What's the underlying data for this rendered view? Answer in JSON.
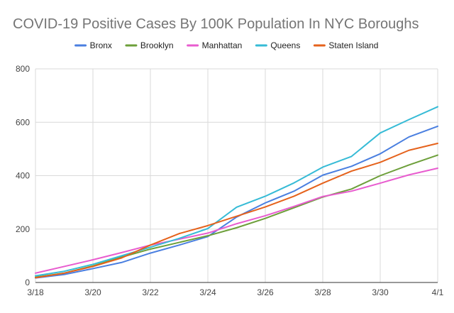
{
  "chart_data": {
    "type": "line",
    "title": "COVID-19 Positive Cases By 100K Population In NYC Boroughs",
    "xlabel": "",
    "ylabel": "",
    "x": [
      "3/18",
      "3/19",
      "3/20",
      "3/21",
      "3/22",
      "3/23",
      "3/24",
      "3/25",
      "3/26",
      "3/27",
      "3/28",
      "3/29",
      "3/30",
      "3/31",
      "4/1"
    ],
    "x_tick_labels": [
      "3/18",
      "3/20",
      "3/22",
      "3/24",
      "3/26",
      "3/28",
      "3/30",
      "4/1"
    ],
    "ylim": [
      0,
      800
    ],
    "y_ticks": [
      0,
      200,
      400,
      600,
      800
    ],
    "grid": true,
    "legend_position": "top-center",
    "series": [
      {
        "name": "Bronx",
        "color": "#4a7fe0",
        "values": [
          17,
          30,
          52,
          75,
          110,
          140,
          172,
          245,
          298,
          342,
          402,
          435,
          482,
          545,
          585
        ]
      },
      {
        "name": "Brooklyn",
        "color": "#6d9f3a",
        "values": [
          20,
          35,
          62,
          95,
          125,
          150,
          175,
          205,
          240,
          280,
          320,
          350,
          400,
          440,
          477
        ]
      },
      {
        "name": "Manhattan",
        "color": "#e85ccf",
        "values": [
          35,
          60,
          85,
          112,
          140,
          162,
          185,
          220,
          250,
          285,
          322,
          342,
          372,
          403,
          428
        ]
      },
      {
        "name": "Queens",
        "color": "#36bbd6",
        "values": [
          25,
          42,
          68,
          100,
          132,
          165,
          202,
          282,
          323,
          373,
          432,
          472,
          560,
          610,
          658
        ]
      },
      {
        "name": "Staten Island",
        "color": "#e5621c",
        "values": [
          18,
          35,
          60,
          92,
          140,
          183,
          213,
          248,
          283,
          323,
          372,
          417,
          450,
          495,
          521
        ]
      }
    ]
  }
}
